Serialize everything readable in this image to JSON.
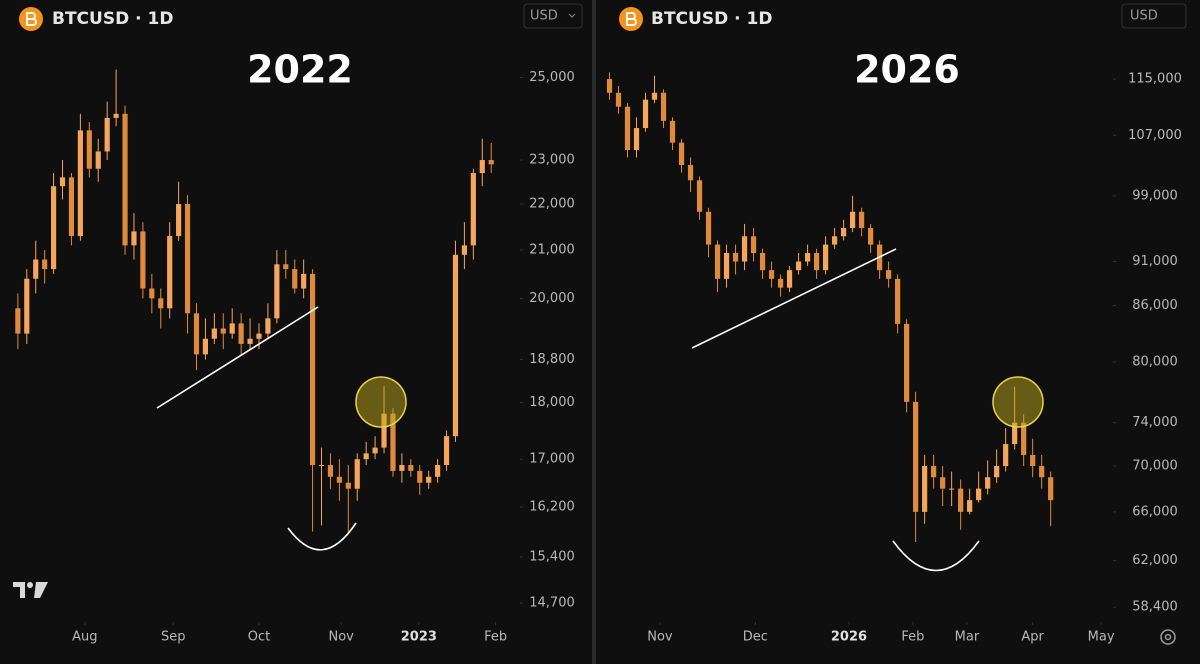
{
  "chart_data": [
    {
      "type": "candlestick",
      "title": "BTCUSD · 1D",
      "label": "2022",
      "currency": "USD",
      "up_color": "#f6a55d",
      "down_color": "#df8a3c",
      "log_scale": true,
      "ylim": [
        14450,
        26230
      ],
      "yticks": [
        {
          "value": 14700,
          "label": "14,700"
        },
        {
          "value": 15400,
          "label": "15,400"
        },
        {
          "value": 16200,
          "label": "16,200"
        },
        {
          "value": 17000,
          "label": "17,000"
        },
        {
          "value": 18000,
          "label": "18,000"
        },
        {
          "value": 18800,
          "label": "18,800"
        },
        {
          "value": 20000,
          "label": "20,000"
        },
        {
          "value": 21000,
          "label": "21,000"
        },
        {
          "value": 22000,
          "label": "22,000"
        },
        {
          "value": 23000,
          "label": "23,000"
        },
        {
          "value": 25000,
          "label": "25,000"
        }
      ],
      "xlim": [
        -2,
        56
      ],
      "xticks": [
        {
          "value": 7.5,
          "label": "Aug"
        },
        {
          "value": 17.4,
          "label": "Sep"
        },
        {
          "value": 27.0,
          "label": "Oct"
        },
        {
          "value": 36.2,
          "label": "Nov"
        },
        {
          "value": 44.9,
          "label": "2023"
        },
        {
          "value": 53.5,
          "label": "Feb"
        }
      ],
      "open": [
        19800,
        19300,
        20400,
        20800,
        20600,
        22400,
        22600,
        21300,
        23700,
        22800,
        23200,
        24000,
        24100,
        21100,
        21400,
        20200,
        20000,
        19800,
        21300,
        22000,
        19700,
        18900,
        19200,
        19400,
        19300,
        19500,
        19100,
        19200,
        19300,
        19600,
        20700,
        20600,
        20200,
        20500,
        16900,
        16900,
        16700,
        16600,
        16500,
        17000,
        17100,
        17200,
        17800,
        16800,
        16900,
        16800,
        16600,
        16700,
        16900,
        17400,
        20900,
        21100,
        22700,
        23000
      ],
      "high": [
        20100,
        20600,
        21200,
        21000,
        22700,
        23000,
        22700,
        24100,
        23900,
        23500,
        24400,
        25200,
        24300,
        21800,
        21600,
        20500,
        20200,
        21600,
        22500,
        22200,
        19900,
        19600,
        19700,
        19700,
        19800,
        19700,
        19600,
        19500,
        19900,
        21000,
        21000,
        20800,
        20800,
        20600,
        17200,
        17100,
        17000,
        16900,
        17100,
        17300,
        17400,
        18300,
        17900,
        17100,
        17000,
        16900,
        16800,
        17000,
        17500,
        21200,
        21600,
        22800,
        23500,
        23400
      ],
      "low": [
        19000,
        19100,
        20100,
        20300,
        20500,
        22100,
        21100,
        21200,
        22600,
        22500,
        23000,
        23800,
        20900,
        20800,
        20000,
        19700,
        19400,
        19600,
        21200,
        19300,
        18600,
        18800,
        19100,
        19000,
        19200,
        18900,
        19000,
        19000,
        19200,
        19500,
        20400,
        20100,
        20000,
        15800,
        15900,
        16500,
        16300,
        15800,
        16300,
        16900,
        17000,
        17100,
        16700,
        16600,
        16700,
        16400,
        16500,
        16600,
        16800,
        17300,
        20600,
        20800,
        22400,
        22700
      ],
      "close": [
        19300,
        20400,
        20800,
        20600,
        22400,
        22600,
        21300,
        23700,
        22800,
        23200,
        24000,
        24100,
        21100,
        21400,
        20200,
        20000,
        19800,
        21300,
        22000,
        19700,
        18900,
        19200,
        19400,
        19300,
        19500,
        19100,
        19200,
        19300,
        19600,
        20700,
        20600,
        20200,
        20500,
        16900,
        16900,
        16700,
        16600,
        16500,
        17000,
        17100,
        17200,
        17800,
        16800,
        16900,
        16800,
        16600,
        16700,
        16900,
        17400,
        20900,
        21100,
        22700,
        23000,
        22900
      ]
    },
    {
      "type": "candlestick",
      "title": "BTCUSD · 1D",
      "label": "2026",
      "currency": "USD",
      "up_color": "#f6a55d",
      "down_color": "#df8a3c",
      "log_scale": true,
      "ylim": [
        57450,
        122480
      ],
      "yticks": [
        {
          "value": 58400,
          "label": "58,400"
        },
        {
          "value": 62000,
          "label": "62,000"
        },
        {
          "value": 66000,
          "label": "66,000"
        },
        {
          "value": 70000,
          "label": "70,000"
        },
        {
          "value": 74000,
          "label": "74,000"
        },
        {
          "value": 80000,
          "label": "80,000"
        },
        {
          "value": 86000,
          "label": "86,000"
        },
        {
          "value": 91000,
          "label": "91,000"
        },
        {
          "value": 99000,
          "label": "99,000"
        },
        {
          "value": 107000,
          "label": "107,000"
        },
        {
          "value": 115000,
          "label": "115,000"
        }
      ],
      "xlim": [
        -1.5,
        55.7
      ],
      "xticks": [
        {
          "value": 5.6,
          "label": "Nov"
        },
        {
          "value": 16.2,
          "label": "Dec"
        },
        {
          "value": 26.6,
          "label": "2026"
        },
        {
          "value": 33.7,
          "label": "Feb"
        },
        {
          "value": 39.7,
          "label": "Mar"
        },
        {
          "value": 47,
          "label": "Apr"
        },
        {
          "value": 54.6,
          "label": "May"
        }
      ],
      "open": [
        115000,
        113000,
        111000,
        105000,
        108000,
        112000,
        113000,
        109000,
        106000,
        103000,
        101000,
        97000,
        93000,
        89000,
        92000,
        91000,
        94000,
        92000,
        90000,
        89000,
        88000,
        90000,
        91000,
        92000,
        90000,
        93000,
        94000,
        95000,
        97000,
        95000,
        93000,
        90000,
        89000,
        84000,
        76000,
        66000,
        70000,
        69000,
        68000,
        68000,
        66000,
        67000,
        68000,
        69000,
        70000,
        72000,
        74000,
        71000,
        70000,
        69000
      ],
      "high": [
        116000,
        114000,
        111500,
        109500,
        113000,
        115500,
        113500,
        109500,
        106500,
        104000,
        101500,
        97500,
        93500,
        93000,
        93000,
        95500,
        95000,
        92500,
        91000,
        89500,
        90500,
        92000,
        93000,
        92500,
        94000,
        95000,
        96000,
        99000,
        97500,
        95500,
        93500,
        91000,
        89500,
        84500,
        77000,
        71000,
        71000,
        70000,
        69500,
        68800,
        68000,
        69500,
        70500,
        71500,
        73500,
        77500,
        74800,
        72500,
        71000,
        69500
      ],
      "low": [
        112000,
        110000,
        104000,
        104000,
        107500,
        111500,
        108000,
        105000,
        102000,
        99500,
        96000,
        91500,
        87500,
        88000,
        89500,
        90000,
        91000,
        89000,
        88000,
        87000,
        87500,
        89500,
        90500,
        89000,
        89500,
        92500,
        93500,
        94500,
        94000,
        92000,
        89000,
        88000,
        83000,
        75000,
        63500,
        65000,
        68000,
        66500,
        66500,
        64500,
        65800,
        66800,
        67500,
        68500,
        69500,
        71500,
        70000,
        69000,
        68000,
        64800
      ],
      "close": [
        113000,
        111000,
        105000,
        108000,
        112000,
        113000,
        109000,
        106000,
        103000,
        101000,
        97000,
        93000,
        89000,
        92000,
        91000,
        94000,
        92000,
        90000,
        89000,
        88000,
        90000,
        91000,
        92000,
        90000,
        93000,
        94000,
        95000,
        97000,
        95000,
        93000,
        90000,
        89000,
        84000,
        76000,
        66000,
        70000,
        69000,
        68000,
        68000,
        66000,
        67000,
        68000,
        69000,
        70000,
        72000,
        74000,
        71000,
        70000,
        69000,
        67000
      ]
    }
  ]
}
